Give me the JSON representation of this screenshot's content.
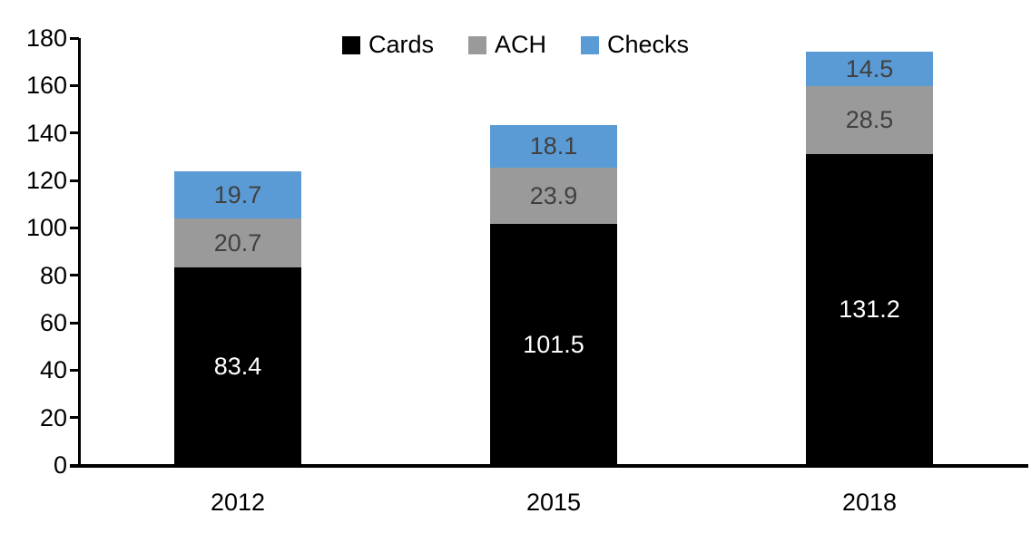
{
  "chart_data": {
    "type": "bar",
    "subtype": "stacked-vertical",
    "title": "",
    "xlabel": "",
    "ylabel": "",
    "categories": [
      "2012",
      "2015",
      "2018"
    ],
    "series": [
      {
        "name": "Cards",
        "color": "#000000",
        "label_color": "#ffffff",
        "values": [
          83.4,
          101.5,
          131.2
        ]
      },
      {
        "name": "ACH",
        "color": "#9a9a9a",
        "label_color": "#404040",
        "values": [
          20.7,
          23.9,
          28.5
        ]
      },
      {
        "name": "Checks",
        "color": "#5b9bd5",
        "label_color": "#404040",
        "values": [
          19.7,
          18.1,
          14.5
        ]
      }
    ],
    "totals": [
      123.8,
      143.5,
      174.2
    ],
    "ylim": [
      0,
      180
    ],
    "ytick_step": 20,
    "ytick_labels": [
      "0",
      "20",
      "40",
      "60",
      "80",
      "100",
      "120",
      "140",
      "160",
      "180"
    ],
    "grid": "off",
    "legend_position": "top-center",
    "axis_color": "#000000",
    "data_labels": "inside-center"
  }
}
